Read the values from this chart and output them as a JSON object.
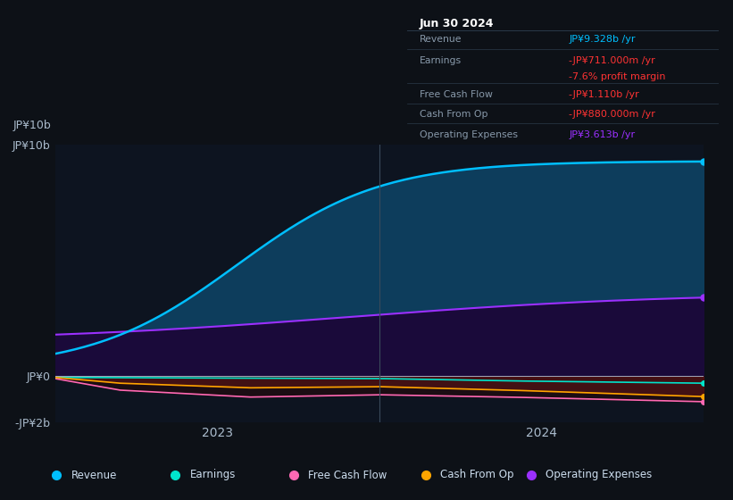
{
  "background_color": "#0d1117",
  "plot_bg_color": "#0d1420",
  "grid_color": "#1e2a38",
  "series_colors": {
    "Revenue": "#00bfff",
    "Earnings": "#00e5cc",
    "Free Cash Flow": "#ff69b4",
    "Cash From Op": "#ffa500",
    "Operating Expenses": "#9b30ff"
  },
  "revenue_fill": "#0d3d5c",
  "opex_fill": "#1a0a3a",
  "neg_fill": "#5a1010",
  "tooltip": {
    "title": "Jun 30 2024",
    "bg_color": "#060a10",
    "border_color": "#2a3a4a",
    "title_color": "#ffffff",
    "label_color": "#8899aa",
    "rows": [
      {
        "label": "Revenue",
        "value": "JP¥9.328b /yr",
        "value_color": "#00bfff",
        "margin": ""
      },
      {
        "label": "Earnings",
        "value": "-JP¥711.000m /yr",
        "value_color": "#ff3333",
        "margin": ""
      },
      {
        "label": "",
        "value": "-7.6% profit margin",
        "value_color": "#ff3333",
        "margin": "margin"
      },
      {
        "label": "Free Cash Flow",
        "value": "-JP¥1.110b /yr",
        "value_color": "#ff3333",
        "margin": ""
      },
      {
        "label": "Cash From Op",
        "value": "-JP¥880.000m /yr",
        "value_color": "#ff3333",
        "margin": ""
      },
      {
        "label": "Operating Expenses",
        "value": "JP¥3.613b /yr",
        "value_color": "#9b30ff",
        "margin": ""
      }
    ]
  },
  "legend_items": [
    {
      "label": "Revenue",
      "color": "#00bfff"
    },
    {
      "label": "Earnings",
      "color": "#00e5cc"
    },
    {
      "label": "Free Cash Flow",
      "color": "#ff69b4"
    },
    {
      "label": "Cash From Op",
      "color": "#ffa500"
    },
    {
      "label": "Operating Expenses",
      "color": "#9b30ff"
    }
  ],
  "ytick_labels": [
    "JP¥10b",
    "JP¥0",
    "-JP¥2b"
  ],
  "ytick_values": [
    10000000000.0,
    0,
    -2000000000.0
  ],
  "xtick_labels": [
    "2023",
    "2024"
  ],
  "xtick_positions": [
    0.25,
    0.75
  ],
  "ylim": [
    -2000000000.0,
    10000000000.0
  ],
  "vline_x": 0.5
}
